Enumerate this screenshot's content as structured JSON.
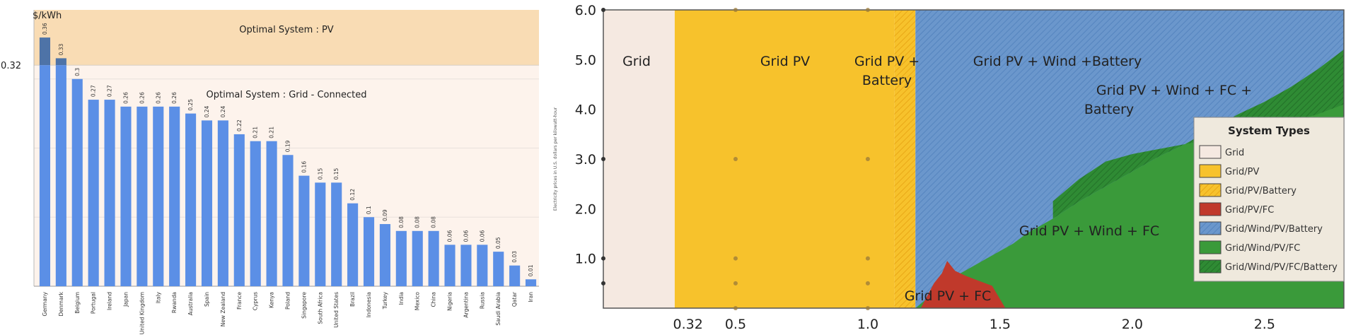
{
  "chart_data": [
    {
      "type": "bar",
      "unit_label": "$/kWh",
      "reference_value": 0.32,
      "reference_label": "0.32",
      "ylim": [
        0,
        0.4
      ],
      "categories": [
        "Germany",
        "Denmark",
        "Belgium",
        "Portugal",
        "Ireland",
        "Japan",
        "United Kingdom",
        "Italy",
        "Rwanda",
        "Australia",
        "Spain",
        "New Zealand",
        "France",
        "Cyprus",
        "Kenya",
        "Poland",
        "Singapore",
        "South Africa",
        "United States",
        "Brazil",
        "Indonesia",
        "Turkey",
        "India",
        "Mexico",
        "China",
        "Nigeria",
        "Argentina",
        "Russia",
        "Saudi Arabia",
        "Qatar",
        "Iran"
      ],
      "values": [
        0.36,
        0.33,
        0.3,
        0.27,
        0.27,
        0.26,
        0.26,
        0.26,
        0.26,
        0.25,
        0.24,
        0.24,
        0.22,
        0.21,
        0.21,
        0.19,
        0.16,
        0.15,
        0.15,
        0.12,
        0.1,
        0.09,
        0.08,
        0.08,
        0.08,
        0.06,
        0.06,
        0.06,
        0.05,
        0.03,
        0.01
      ],
      "value_labels": [
        "0.36",
        "0.33",
        "0.3",
        "0.27",
        "0.27",
        "0.26",
        "0.26",
        "0.26",
        "0.26",
        "0.25",
        "0.24",
        "0.24",
        "0.22",
        "0.21",
        "0.21",
        "0.19",
        "0.16",
        "0.15",
        "0.15",
        "0.12",
        "0.1",
        "0.09",
        "0.08",
        "0.08",
        "0.08",
        "0.06",
        "0.06",
        "0.06",
        "0.05",
        "0.03",
        "0.01"
      ],
      "regions": [
        {
          "label": "Optimal System : PV",
          "from": 0.32,
          "to": 0.4,
          "color": "#f9dcb4"
        },
        {
          "label": "Optimal System : Grid - Connected",
          "from": 0,
          "to": 0.32,
          "color": "#fdf3ec"
        }
      ],
      "bar_color": "#5b8fe6",
      "bar_color_above": "#4e73a7"
    },
    {
      "type": "region_map",
      "ylabel": "Electricity prices in U.S. dollars per kilowatt-hour",
      "xlim": [
        0,
        2.8
      ],
      "ylim": [
        0,
        6.0
      ],
      "x_ticks": [
        0.32,
        0.5,
        1.0,
        1.5,
        2.0,
        2.5
      ],
      "x_tick_labels": [
        "0.32",
        "0.5",
        "1.0",
        "1.5",
        "2.0",
        "2.5"
      ],
      "y_ticks": [
        1.0,
        2.0,
        3.0,
        4.0,
        5.0,
        6.0
      ],
      "y_tick_labels": [
        "1.0",
        "2.0",
        "3.0",
        "4.0",
        "5.0",
        "6.0"
      ],
      "regions": [
        {
          "label": "Grid",
          "lines": [
            "Grid"
          ],
          "x_range": [
            0,
            0.27
          ],
          "color": "#f5e9e1"
        },
        {
          "label": "Grid PV",
          "lines": [
            "Grid PV"
          ],
          "x_range": [
            0.27,
            1.1
          ],
          "color": "#f7c22c"
        },
        {
          "label": "Grid PV + Battery",
          "lines": [
            "Grid PV +",
            "Battery"
          ],
          "x_range": [
            1.1,
            1.18
          ],
          "color": "#f7c22c"
        },
        {
          "label": "Grid PV + Wind +Battery",
          "lines": [
            "Grid PV + Wind +Battery"
          ],
          "color": "#6b97cc"
        },
        {
          "label": "Grid PV + Wind + FC + Battery",
          "lines": [
            "Grid PV + Wind + FC +",
            "Battery"
          ],
          "color": "#2f8b34"
        },
        {
          "label": "Grid PV + Wind + FC",
          "lines": [
            "Grid PV + Wind + FC"
          ],
          "color": "#3a9a3a"
        },
        {
          "label": "Grid PV + FC",
          "lines": [
            "Grid PV + FC"
          ],
          "color": "#c0392b"
        }
      ],
      "wind_boundary": {
        "x": [
          1.18,
          1.25,
          1.3,
          1.35,
          1.4,
          1.45,
          1.5,
          1.55,
          1.6,
          1.7,
          1.8,
          1.9,
          2.0,
          2.1,
          2.2,
          2.3,
          2.4,
          2.5,
          2.6,
          2.7,
          2.8
        ],
        "y": [
          0,
          0.3,
          0.5,
          0.7,
          0.85,
          1.0,
          1.15,
          1.3,
          1.5,
          1.8,
          2.15,
          2.45,
          2.75,
          3.05,
          3.3,
          3.6,
          3.9,
          4.15,
          4.45,
          4.8,
          5.2
        ]
      },
      "fc_battery_lower": {
        "x": [
          1.7,
          1.8,
          1.9,
          2.0,
          2.1,
          2.2,
          2.3,
          2.4,
          2.5,
          2.6,
          2.7,
          2.8
        ],
        "y": [
          2.15,
          2.6,
          2.95,
          3.1,
          3.2,
          3.3,
          3.4,
          3.5,
          3.6,
          3.75,
          3.9,
          4.1
        ]
      },
      "fc_region": {
        "x": [
          1.2,
          1.25,
          1.28,
          1.3,
          1.33,
          1.37,
          1.42,
          1.47,
          1.52
        ],
        "y": [
          0,
          0.5,
          0.7,
          0.95,
          0.75,
          0.65,
          0.55,
          0.45,
          0
        ]
      },
      "legend": {
        "title": "System Types",
        "items": [
          {
            "label": "Grid",
            "color": "#f5e9e1",
            "hatch": false
          },
          {
            "label": "Grid/PV",
            "color": "#f7c22c",
            "hatch": false
          },
          {
            "label": "Grid/PV/Battery",
            "color": "#f7c22c",
            "hatch": true
          },
          {
            "label": "Grid/PV/FC",
            "color": "#c0392b",
            "hatch": false
          },
          {
            "label": "Grid/Wind/PV/Battery",
            "color": "#6b97cc",
            "hatch": true
          },
          {
            "label": "Grid/Wind/PV/FC",
            "color": "#3a9a3a",
            "hatch": false
          },
          {
            "label": "Grid/Wind/PV/FC/Battery",
            "color": "#2f8b34",
            "hatch": true
          }
        ]
      }
    }
  ]
}
